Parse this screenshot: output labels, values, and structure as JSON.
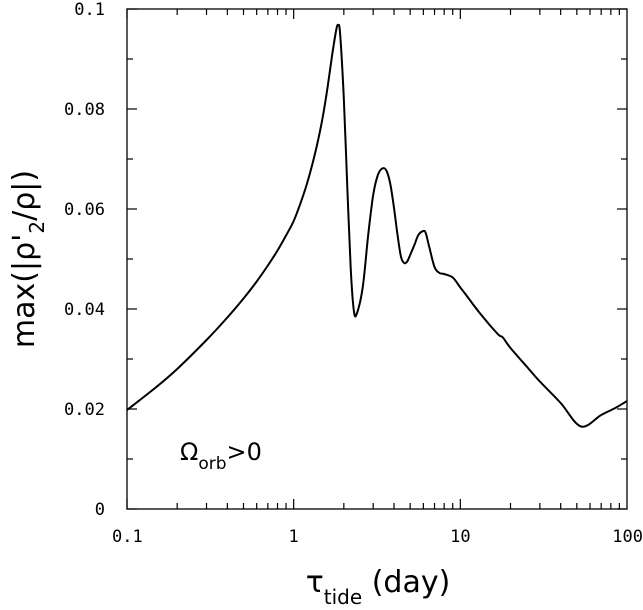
{
  "chart_data": {
    "type": "line",
    "x_scale": "log",
    "xlim": [
      0.1,
      100
    ],
    "ylim": [
      0,
      0.1
    ],
    "grid": false,
    "xticks": [
      {
        "value": 0.1,
        "label": "0.1"
      },
      {
        "value": 1,
        "label": "1"
      },
      {
        "value": 10,
        "label": "10"
      },
      {
        "value": 100,
        "label": "100"
      }
    ],
    "yticks": [
      {
        "value": 0,
        "label": "0"
      },
      {
        "value": 0.02,
        "label": "0.02"
      },
      {
        "value": 0.04,
        "label": "0.04"
      },
      {
        "value": 0.06,
        "label": "0.06"
      },
      {
        "value": 0.08,
        "label": "0.08"
      },
      {
        "value": 0.1,
        "label": "0.1"
      }
    ],
    "xlabel": {
      "main": "τ",
      "sub": "tide",
      "rest": " (day)"
    },
    "ylabel": {
      "pre": "max(|ρ'",
      "sub": "2",
      "post": "/ρ|)"
    },
    "annotation": {
      "main": "Ω",
      "sub": "orb",
      "rest": ">0"
    },
    "series": [
      {
        "color": "#000000",
        "x": [
          0.1,
          0.15,
          0.2,
          0.3,
          0.4,
          0.5,
          0.6,
          0.7,
          0.8,
          0.9,
          1.0,
          1.1,
          1.2,
          1.3,
          1.4,
          1.5,
          1.6,
          1.7,
          1.8,
          1.85,
          1.9,
          2.0,
          2.1,
          2.2,
          2.3,
          2.4,
          2.6,
          2.8,
          3.0,
          3.2,
          3.4,
          3.6,
          3.8,
          4.0,
          4.2,
          4.4,
          4.6,
          4.8,
          5.0,
          5.3,
          5.6,
          6.0,
          6.2,
          6.5,
          7.0,
          7.5,
          8.0,
          9.0,
          10,
          11,
          12,
          13,
          14,
          15,
          17,
          18,
          20,
          25,
          30,
          40,
          53,
          70,
          85,
          100
        ],
        "y": [
          0.0198,
          0.0244,
          0.028,
          0.0338,
          0.0383,
          0.0421,
          0.0455,
          0.0487,
          0.0517,
          0.0547,
          0.0576,
          0.0612,
          0.065,
          0.0692,
          0.0737,
          0.0787,
          0.0845,
          0.0907,
          0.0958,
          0.0968,
          0.095,
          0.082,
          0.064,
          0.048,
          0.0395,
          0.0392,
          0.0445,
          0.0548,
          0.0628,
          0.0668,
          0.0681,
          0.0677,
          0.065,
          0.0602,
          0.0548,
          0.0505,
          0.0492,
          0.0495,
          0.0508,
          0.0528,
          0.0548,
          0.0556,
          0.0552,
          0.0525,
          0.0484,
          0.0472,
          0.047,
          0.0463,
          0.0443,
          0.0425,
          0.0408,
          0.0393,
          0.038,
          0.0368,
          0.0348,
          0.0343,
          0.0322,
          0.0285,
          0.0255,
          0.0212,
          0.0165,
          0.0188,
          0.0202,
          0.0216
        ]
      }
    ]
  }
}
